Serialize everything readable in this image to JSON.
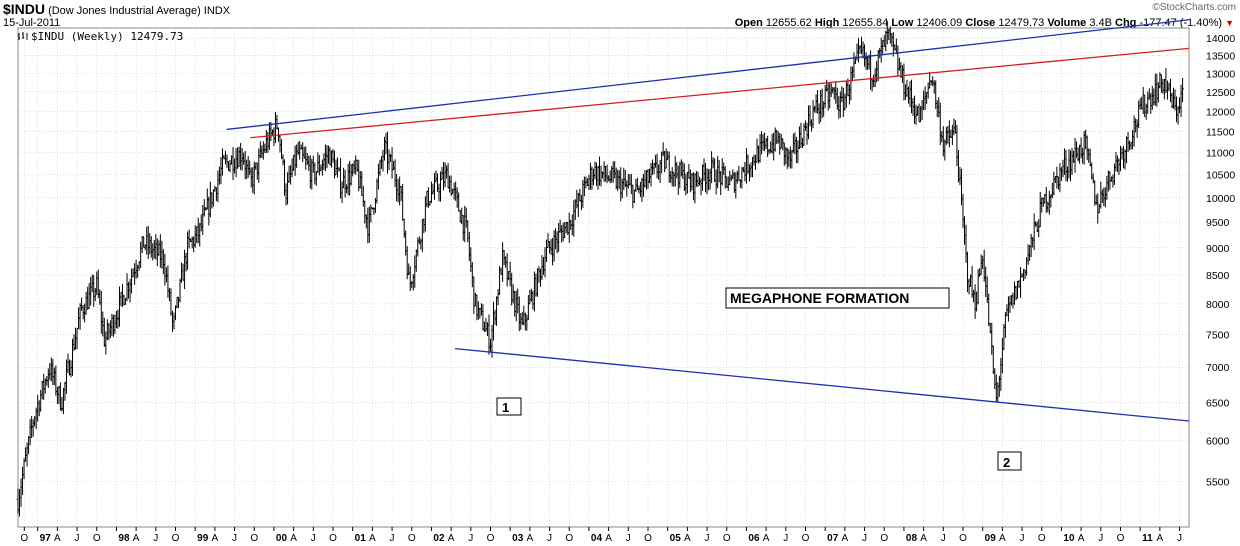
{
  "header": {
    "symbol": "$INDU",
    "name": "(Dow Jones Industrial Average)",
    "exchange": "INDX",
    "date": "15-Jul-2011",
    "series_label": "$INDU (Weekly) 12479.73",
    "watermark": "©StockCharts.com",
    "ohlc": {
      "open_label": "Open",
      "open": "12655.62",
      "high_label": "High",
      "high": "12655.84",
      "low_label": "Low",
      "low": "12406.09",
      "close_label": "Close",
      "close": "12479.73",
      "volume_label": "Volume",
      "volume": "3.4B",
      "chg_label": "Chg",
      "chg": "-177.47 (-1.40%)"
    }
  },
  "colors": {
    "bars": "#000000",
    "grid": "#c8c8c8",
    "blue_trendline": "#1f2fb0",
    "red_trendline": "#d42020",
    "annotation_text": "#1a2aa0",
    "down_arrow": "#cc0000"
  },
  "annotations": {
    "formation": "MEGAPHONE FORMATION",
    "point1": "1",
    "point2": "2"
  },
  "chart_data": {
    "type": "ohlc",
    "title": "$INDU (Weekly)",
    "scale": "log",
    "ylim": [
      5000,
      14300
    ],
    "yticks": [
      5500,
      6000,
      6500,
      7000,
      7500,
      8000,
      8500,
      9000,
      9500,
      10000,
      10500,
      11000,
      11500,
      12000,
      12500,
      13000,
      13500,
      14000
    ],
    "xlim": [
      1996.75,
      2011.62
    ],
    "xticks": [
      {
        "t": 1996.83,
        "label": "O"
      },
      {
        "t": 1997.0,
        "label": "97"
      },
      {
        "t": 1997.25,
        "label": "A"
      },
      {
        "t": 1997.5,
        "label": "J"
      },
      {
        "t": 1997.75,
        "label": "O"
      },
      {
        "t": 1998.0,
        "label": "98"
      },
      {
        "t": 1998.25,
        "label": "A"
      },
      {
        "t": 1998.5,
        "label": "J"
      },
      {
        "t": 1998.75,
        "label": "O"
      },
      {
        "t": 1999.0,
        "label": "99"
      },
      {
        "t": 1999.25,
        "label": "A"
      },
      {
        "t": 1999.5,
        "label": "J"
      },
      {
        "t": 1999.75,
        "label": "O"
      },
      {
        "t": 2000.0,
        "label": "00"
      },
      {
        "t": 2000.25,
        "label": "A"
      },
      {
        "t": 2000.5,
        "label": "J"
      },
      {
        "t": 2000.75,
        "label": "O"
      },
      {
        "t": 2001.0,
        "label": "01"
      },
      {
        "t": 2001.25,
        "label": "A"
      },
      {
        "t": 2001.5,
        "label": "J"
      },
      {
        "t": 2001.75,
        "label": "O"
      },
      {
        "t": 2002.0,
        "label": "02"
      },
      {
        "t": 2002.25,
        "label": "A"
      },
      {
        "t": 2002.5,
        "label": "J"
      },
      {
        "t": 2002.75,
        "label": "O"
      },
      {
        "t": 2003.0,
        "label": "03"
      },
      {
        "t": 2003.25,
        "label": "A"
      },
      {
        "t": 2003.5,
        "label": "J"
      },
      {
        "t": 2003.75,
        "label": "O"
      },
      {
        "t": 2004.0,
        "label": "04"
      },
      {
        "t": 2004.25,
        "label": "A"
      },
      {
        "t": 2004.5,
        "label": "J"
      },
      {
        "t": 2004.75,
        "label": "O"
      },
      {
        "t": 2005.0,
        "label": "05"
      },
      {
        "t": 2005.25,
        "label": "A"
      },
      {
        "t": 2005.5,
        "label": "J"
      },
      {
        "t": 2005.75,
        "label": "O"
      },
      {
        "t": 2006.0,
        "label": "06"
      },
      {
        "t": 2006.25,
        "label": "A"
      },
      {
        "t": 2006.5,
        "label": "J"
      },
      {
        "t": 2006.75,
        "label": "O"
      },
      {
        "t": 2007.0,
        "label": "07"
      },
      {
        "t": 2007.25,
        "label": "A"
      },
      {
        "t": 2007.5,
        "label": "J"
      },
      {
        "t": 2007.75,
        "label": "O"
      },
      {
        "t": 2008.0,
        "label": "08"
      },
      {
        "t": 2008.25,
        "label": "A"
      },
      {
        "t": 2008.5,
        "label": "J"
      },
      {
        "t": 2008.75,
        "label": "O"
      },
      {
        "t": 2009.0,
        "label": "09"
      },
      {
        "t": 2009.25,
        "label": "A"
      },
      {
        "t": 2009.5,
        "label": "J"
      },
      {
        "t": 2009.75,
        "label": "O"
      },
      {
        "t": 2010.0,
        "label": "10"
      },
      {
        "t": 2010.25,
        "label": "A"
      },
      {
        "t": 2010.5,
        "label": "J"
      },
      {
        "t": 2010.75,
        "label": "O"
      },
      {
        "t": 2011.0,
        "label": "11"
      },
      {
        "t": 2011.25,
        "label": "A"
      },
      {
        "t": 2011.5,
        "label": "J"
      }
    ],
    "price_path": [
      [
        1996.75,
        5300
      ],
      [
        1996.95,
        6300
      ],
      [
        1997.15,
        7000
      ],
      [
        1997.3,
        6500
      ],
      [
        1997.55,
        7900
      ],
      [
        1997.75,
        8300
      ],
      [
        1997.85,
        7400
      ],
      [
        1998.05,
        8000
      ],
      [
        1998.35,
        9100
      ],
      [
        1998.6,
        8800
      ],
      [
        1998.72,
        7600
      ],
      [
        1998.9,
        9000
      ],
      [
        1999.05,
        9300
      ],
      [
        1999.35,
        10700
      ],
      [
        1999.6,
        11000
      ],
      [
        1999.7,
        10300
      ],
      [
        1999.9,
        11200
      ],
      [
        2000.05,
        11700
      ],
      [
        2000.15,
        10100
      ],
      [
        2000.3,
        11000
      ],
      [
        2000.5,
        10500
      ],
      [
        2000.7,
        11000
      ],
      [
        2000.85,
        10300
      ],
      [
        2001.05,
        10600
      ],
      [
        2001.2,
        9400
      ],
      [
        2001.4,
        11100
      ],
      [
        2001.6,
        10200
      ],
      [
        2001.72,
        8300
      ],
      [
        2001.95,
        10000
      ],
      [
        2002.2,
        10500
      ],
      [
        2002.45,
        9300
      ],
      [
        2002.55,
        8000
      ],
      [
        2002.75,
        7400
      ],
      [
        2002.9,
        8800
      ],
      [
        2003.15,
        7600
      ],
      [
        2003.45,
        8900
      ],
      [
        2003.75,
        9500
      ],
      [
        2004.05,
        10600
      ],
      [
        2004.3,
        10400
      ],
      [
        2004.6,
        10100
      ],
      [
        2004.95,
        10800
      ],
      [
        2005.3,
        10300
      ],
      [
        2005.55,
        10600
      ],
      [
        2005.8,
        10300
      ],
      [
        2006.15,
        11000
      ],
      [
        2006.4,
        11300
      ],
      [
        2006.55,
        10800
      ],
      [
        2006.85,
        12000
      ],
      [
        2007.1,
        12500
      ],
      [
        2007.2,
        12100
      ],
      [
        2007.45,
        13600
      ],
      [
        2007.6,
        13000
      ],
      [
        2007.8,
        14100
      ],
      [
        2008.0,
        12700
      ],
      [
        2008.2,
        11800
      ],
      [
        2008.35,
        13000
      ],
      [
        2008.5,
        11200
      ],
      [
        2008.65,
        11500
      ],
      [
        2008.8,
        8600
      ],
      [
        2008.9,
        8000
      ],
      [
        2009.0,
        8900
      ],
      [
        2009.17,
        6500
      ],
      [
        2009.3,
        7800
      ],
      [
        2009.5,
        8500
      ],
      [
        2009.75,
        9800
      ],
      [
        2010.0,
        10600
      ],
      [
        2010.3,
        11200
      ],
      [
        2010.45,
        9800
      ],
      [
        2010.6,
        10400
      ],
      [
        2010.85,
        11300
      ],
      [
        2011.05,
        12200
      ],
      [
        2011.3,
        12800
      ],
      [
        2011.45,
        12000
      ],
      [
        2011.54,
        12480
      ]
    ],
    "trendlines": [
      {
        "color": "blue",
        "from": [
          1999.4,
          11550
        ],
        "to": [
          2011.62,
          14550
        ]
      },
      {
        "color": "red",
        "from": [
          1999.7,
          11350
        ],
        "to": [
          2011.62,
          13700
        ]
      },
      {
        "color": "blue",
        "from": [
          2002.3,
          7280
        ],
        "to": [
          2011.62,
          6250
        ]
      }
    ]
  }
}
